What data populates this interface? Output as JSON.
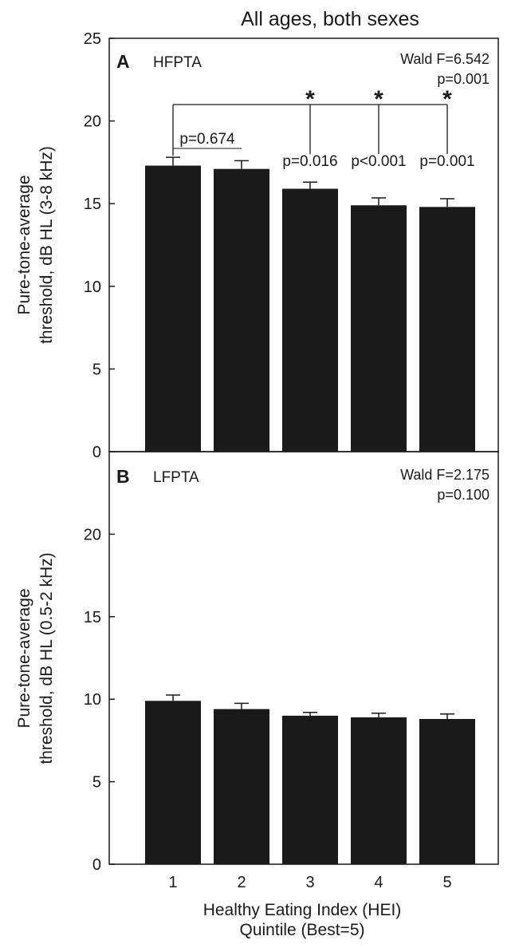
{
  "figure_title": "All ages, both sexes",
  "xlabel_line1": "Healthy Eating Index (HEI)",
  "xlabel_line2": "Quintile (Best=5)",
  "bar_color": "#1a1a1a",
  "chart_data": [
    {
      "type": "bar",
      "panel_letter": "A",
      "panel_name": "HFPTA",
      "ylabel_line1": "Pure-tone-average",
      "ylabel_line2": "threshold, dB HL (3-8 kHz)",
      "categories": [
        "1",
        "2",
        "3",
        "4",
        "5"
      ],
      "values": [
        17.3,
        17.1,
        15.9,
        14.9,
        14.8
      ],
      "errors": [
        0.5,
        0.5,
        0.4,
        0.45,
        0.5
      ],
      "ylim": [
        0,
        25
      ],
      "yticks": [
        "0",
        "5",
        "10",
        "15",
        "20",
        "25"
      ],
      "stat_line1": "Wald F=6.542",
      "stat_line2": "p=0.001",
      "pairwise": [
        {
          "category": "2",
          "label": "p=0.674",
          "significant": false
        },
        {
          "category": "3",
          "label": "p=0.016",
          "significant": true
        },
        {
          "category": "4",
          "label": "p<0.001",
          "significant": true
        },
        {
          "category": "5",
          "label": "p=0.001",
          "significant": true
        }
      ],
      "significance_mark": "*"
    },
    {
      "type": "bar",
      "panel_letter": "B",
      "panel_name": "LFPTA",
      "ylabel_line1": "Pure-tone-average",
      "ylabel_line2": "threshold, dB HL (0.5-2 kHz)",
      "categories": [
        "1",
        "2",
        "3",
        "4",
        "5"
      ],
      "values": [
        9.9,
        9.4,
        9.0,
        8.9,
        8.8
      ],
      "errors": [
        0.35,
        0.35,
        0.2,
        0.25,
        0.3
      ],
      "ylim": [
        0,
        25
      ],
      "yticks": [
        "0",
        "5",
        "10",
        "15",
        "20"
      ],
      "stat_line1": "Wald F=2.175",
      "stat_line2": "p=0.100"
    }
  ]
}
